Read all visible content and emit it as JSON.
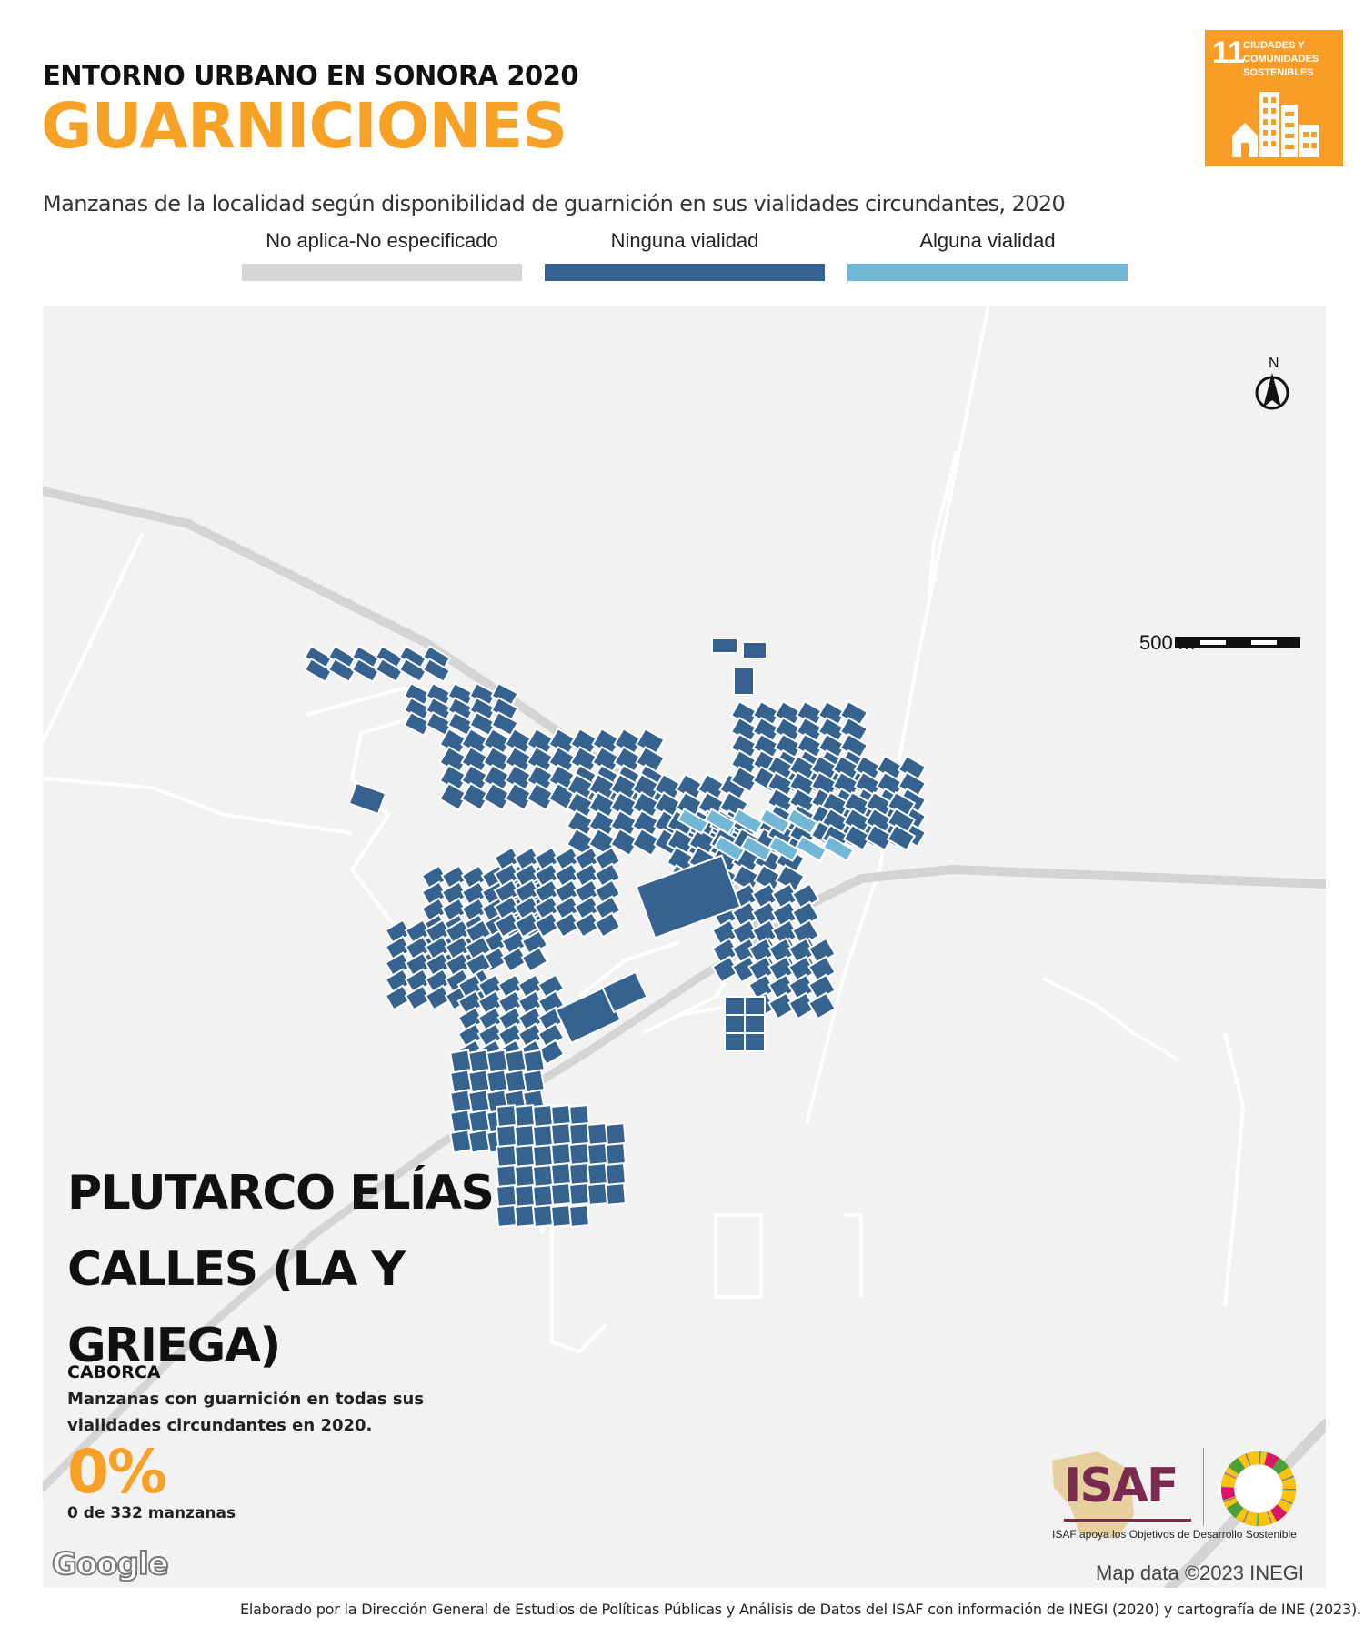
{
  "header": {
    "kicker": "ENTORNO URBANO EN SONORA 2020",
    "title": "GUARNICIONES",
    "subtitle": "Manzanas de la localidad según disponibilidad de guarnición en sus vialidades circundantes, 2020"
  },
  "sdg_badge": {
    "number": "11",
    "text": "CIUDADES Y COMUNIDADES SOSTENIBLES",
    "color": "#f99d26",
    "icon": "city-buildings-icon"
  },
  "legend": [
    {
      "label": "No aplica-No especificado",
      "color": "#d6d6d6"
    },
    {
      "label": "Ninguna vialidad",
      "color": "#35628f"
    },
    {
      "label": "Alguna vialidad",
      "color": "#72b8d6"
    }
  ],
  "map": {
    "scale_label": "500 m",
    "north_label": "N",
    "attribution": "Map data ©2023 INEGI",
    "google_label": "Google"
  },
  "locality": {
    "name": "PLUTARCO ELÍAS CALLES (LA Y GRIEGA)",
    "municipality": "CABORCA",
    "indicator_text": "Manzanas con guarnición en todas sus vialidades circundantes en 2020.",
    "percent": "0%",
    "count_text": "0 de 332 manzanas"
  },
  "logos": {
    "isaf": "ISAF",
    "isaf_tagline": "ISAF apoya los Objetivos de Desarrollo Sostenible"
  },
  "footer": {
    "credit": "Elaborado por la Dirección General de Estudios de Políticas Públicas y Análisis de Datos del ISAF con información de INEGI (2020) y cartografía de INE (2023)."
  }
}
